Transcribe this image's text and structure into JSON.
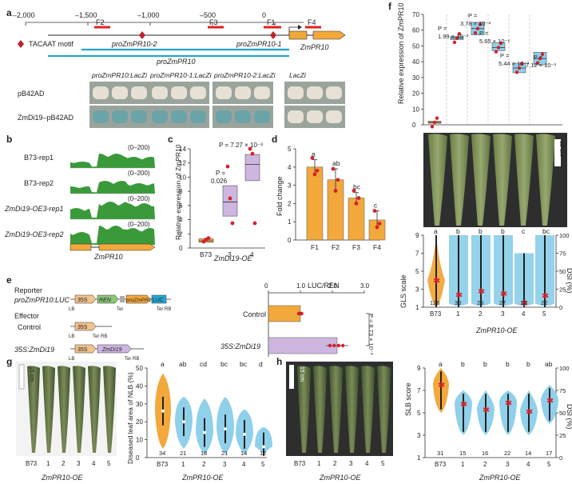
{
  "panel_a": {
    "label": "a",
    "axis_ticks": [
      "–2,000",
      "–1,500",
      "–1,000",
      "–500",
      "0"
    ],
    "fragments": [
      "F2",
      "F3",
      "F1",
      "F4"
    ],
    "motif_legend": "TACAAT motif",
    "gene": "ZmPR10",
    "promoters": [
      "proZmPR10-2",
      "proZmPR10-1",
      "proZmPR10"
    ],
    "columns": [
      "proZmPR10:LacZi",
      "proZmPR10-1:LacZi",
      "proZmPR10-2:LacZi",
      "LacZi"
    ],
    "rows": [
      "pB42AD",
      "ZmDi19–pB42AD"
    ]
  },
  "panel_b": {
    "label": "b",
    "tracks": [
      "B73-rep1",
      "B73-rep2",
      "ZmDi19-OE3-rep1",
      "ZmDi19-OE3-rep2"
    ],
    "range": "(0–200)",
    "gene": "ZmPR10"
  },
  "panel_c": {
    "label": "c",
    "ylabel": "Relative expression of ZmPR10",
    "yticks": [
      "0",
      "2",
      "4",
      "6",
      "8",
      "10",
      "12",
      "14"
    ],
    "categories": [
      "B73",
      "3",
      "4"
    ],
    "group_label": "ZmDi19-OE",
    "p1_prefix": "P =",
    "p1": "0.026",
    "p2": "P = 7.27 × 10⁻³"
  },
  "panel_d": {
    "label": "d",
    "ylabel": "Fold change",
    "yticks": [
      "0",
      "1",
      "2",
      "3",
      "4",
      "5"
    ],
    "categories": [
      "F1",
      "F2",
      "F3",
      "F4"
    ],
    "letters": [
      "a",
      "ab",
      "bc",
      "c"
    ]
  },
  "panel_e": {
    "label": "e",
    "reporter": "Reporter",
    "reporter_construct": "proZmPR10:LUC",
    "effector": "Effector",
    "control": "Control",
    "effector_construct": "35S:ZmDi19",
    "boxes": [
      "35S",
      "REN",
      "proZmPR10",
      "LUC",
      "35S",
      "ZmDi19"
    ],
    "small": [
      "LB",
      "Ter",
      "Ter RB",
      "LB",
      "Ter RB",
      "LB",
      "Ter RB"
    ],
    "chart_title": "LUC/REN",
    "xticks": [
      "0",
      "1.0",
      "2.0",
      "3.0"
    ],
    "pvalue": "P = 8.73 × 10⁻³"
  },
  "panel_f": {
    "label": "f",
    "ylabel": "Relative expression of ZmPR10",
    "yticks": [
      "0",
      "10",
      "20",
      "30",
      "40",
      "50",
      "60",
      "70"
    ],
    "pvalues": [
      "P =",
      "1.99 × 10⁻³",
      "P =",
      "3.78 × 10⁻³",
      "P =",
      "5.65 × 10⁻⁶",
      "P =",
      "5.44 × 10⁻³",
      "P =",
      "7.12 × 10⁻³"
    ],
    "scale": "15 cm",
    "violin_ylabel": "GLS scale",
    "violin_yticks": [
      "1",
      "3",
      "5",
      "7",
      "9"
    ],
    "dsi_label": "DSI (%)",
    "dsi_ticks": [
      "0",
      "25",
      "50",
      "75",
      "100"
    ],
    "letters": [
      "a",
      "b",
      "b",
      "b",
      "c",
      "bc"
    ],
    "counts": [
      "126",
      "30",
      "25",
      "27",
      "18",
      "22"
    ],
    "categories": [
      "B73",
      "1",
      "2",
      "3",
      "4",
      "5"
    ],
    "group_label": "ZmPR10-OE"
  },
  "panel_g": {
    "label": "g",
    "scale": "15 cm",
    "leaf_labels": [
      "B73",
      "1",
      "2",
      "3",
      "4",
      "5"
    ],
    "group_label": "ZmPR10-OE",
    "ylabel": "Diseased leaf area of NLB (%)",
    "yticks": [
      "0",
      "10",
      "20",
      "30",
      "40",
      "50"
    ],
    "letters": [
      "a",
      "ab",
      "cd",
      "bc",
      "bc",
      "d"
    ],
    "counts": [
      "34",
      "21",
      "18",
      "21",
      "14",
      "12"
    ],
    "categories": [
      "B73",
      "1",
      "2",
      "3",
      "4",
      "5"
    ]
  },
  "panel_h": {
    "label": "h",
    "scale": "15 cm",
    "leaf_labels": [
      "B73",
      "1",
      "2",
      "3",
      "4",
      "5"
    ],
    "group_label": "ZmPR10-OE",
    "ylabel": "SLB score",
    "yticks": [
      "1",
      "3",
      "5",
      "7",
      "9"
    ],
    "dsi_label": "DSI (%)",
    "dsi_ticks": [
      "0",
      "25",
      "50",
      "75",
      "100"
    ],
    "letters": [
      "a",
      "b",
      "b",
      "b",
      "b",
      "ab"
    ],
    "counts": [
      "31",
      "15",
      "16",
      "22",
      "14",
      "17"
    ],
    "categories": [
      "B73",
      "1",
      "2",
      "3",
      "4",
      "5"
    ]
  },
  "chart_data": [
    {
      "type": "box",
      "panel": "c",
      "title": "",
      "ylabel": "Relative expression of ZmPR10",
      "categories": [
        "B73",
        "3",
        "4"
      ],
      "medians": [
        1.0,
        6.5,
        11.8
      ],
      "q1": [
        0.8,
        4.5,
        9.5
      ],
      "q3": [
        1.3,
        8.8,
        13.2
      ],
      "ylim": [
        0,
        14
      ],
      "points": [
        [
          0.9,
          1.2,
          1.4
        ],
        [
          11.5,
          7,
          3.5
        ],
        [
          14,
          13.3,
          3.5
        ]
      ]
    },
    {
      "type": "bar",
      "panel": "d",
      "ylabel": "Fold change",
      "categories": [
        "F1",
        "F2",
        "F3",
        "F4"
      ],
      "values": [
        4.0,
        3.3,
        2.3,
        1.1
      ],
      "errors": [
        0.4,
        0.6,
        0.3,
        0.5
      ],
      "ylim": [
        0,
        5
      ],
      "points": [
        [
          4.5,
          3.6,
          3.8
        ],
        [
          3.9,
          2.7,
          3.3
        ],
        [
          2.7,
          2.0,
          2.3
        ],
        [
          1.6,
          0.7,
          0.9
        ]
      ]
    },
    {
      "type": "bar",
      "panel": "e",
      "orientation": "horizontal",
      "title": "LUC/REN",
      "categories": [
        "Control",
        "35S:ZmDi19"
      ],
      "values": [
        1.0,
        2.15
      ],
      "errors": [
        0.06,
        0.35
      ],
      "xlim": [
        0,
        3.0
      ]
    },
    {
      "type": "box",
      "panel": "f",
      "ylabel": "Relative expression of ZmPR10",
      "categories": [
        "B73",
        "1",
        "2",
        "3",
        "4",
        "5"
      ],
      "medians": [
        1.5,
        55,
        61,
        49,
        36,
        42
      ],
      "q1": [
        1,
        54,
        57,
        47,
        33,
        38
      ],
      "q3": [
        2.3,
        56,
        65,
        52,
        39,
        46
      ],
      "ylim": [
        0,
        70
      ]
    },
    {
      "type": "violin",
      "panel": "f",
      "ylabel": "GLS scale",
      "categories": [
        "B73",
        "1",
        "2",
        "3",
        "4",
        "5"
      ],
      "means": [
        4,
        2.4,
        2.8,
        2.5,
        1.5,
        2.3
      ],
      "ylim": [
        1,
        9
      ],
      "dsi_range": [
        0,
        100
      ]
    },
    {
      "type": "violin",
      "panel": "g",
      "ylabel": "Diseased leaf area of NLB (%)",
      "categories": [
        "B73",
        "1",
        "2",
        "3",
        "4",
        "5"
      ],
      "medians": [
        26,
        20,
        14,
        16,
        13,
        6
      ],
      "ylim": [
        0,
        50
      ]
    },
    {
      "type": "violin",
      "panel": "h",
      "ylabel": "SLB score",
      "categories": [
        "B73",
        "1",
        "2",
        "3",
        "4",
        "5"
      ],
      "means": [
        7.5,
        5.8,
        5.3,
        5.9,
        5.1,
        6.1
      ],
      "ylim": [
        1,
        9
      ],
      "dsi_range": [
        0,
        100
      ]
    }
  ]
}
